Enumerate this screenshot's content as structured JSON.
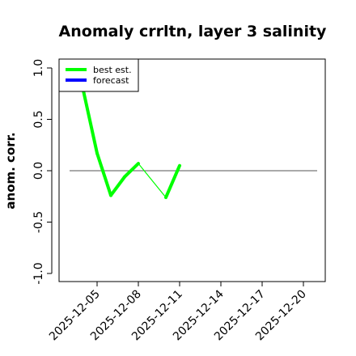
{
  "chart_data": {
    "type": "line",
    "title": "Anomaly crrltn, layer 3 salinity",
    "ylabel": "anom. corr.",
    "xlabel": "",
    "ylim": [
      -1.0,
      1.0
    ],
    "yticks": [
      "1.0",
      "0.5",
      "0.0",
      "-0.5",
      "-1.0"
    ],
    "ytick_values": [
      1.0,
      0.5,
      0.0,
      -0.5,
      -1.0
    ],
    "xticks": [
      "2025-12-05",
      "2025-12-08",
      "2025-12-11",
      "2025-12-14",
      "2025-12-17",
      "2025-12-20"
    ],
    "highlight_xtick": "2025-12-11",
    "highlight_color": "#228B22",
    "xlim": [
      "2025-12-02",
      "2025-12-22"
    ],
    "reference_line": 0.0,
    "legend": {
      "position": "top-left",
      "entries": [
        "best est.",
        "forecast"
      ]
    },
    "series": [
      {
        "name": "best est.",
        "color": "#00ff00",
        "points": [
          {
            "x": "2025-12-04",
            "y": 0.78
          },
          {
            "x": "2025-12-05",
            "y": 0.17
          },
          {
            "x": "2025-12-06",
            "y": -0.24
          },
          {
            "x": "2025-12-07",
            "y": -0.06
          },
          {
            "x": "2025-12-08",
            "y": 0.07
          },
          {
            "x": "2025-12-10",
            "y": -0.26
          },
          {
            "x": "2025-12-11",
            "y": 0.05
          }
        ],
        "thick_segments": [
          [
            0,
            1
          ],
          [
            1,
            2
          ],
          [
            2,
            3
          ],
          [
            3,
            4
          ],
          [
            5,
            6
          ]
        ]
      },
      {
        "name": "forecast",
        "color": "#0000ff",
        "points": []
      }
    ]
  }
}
